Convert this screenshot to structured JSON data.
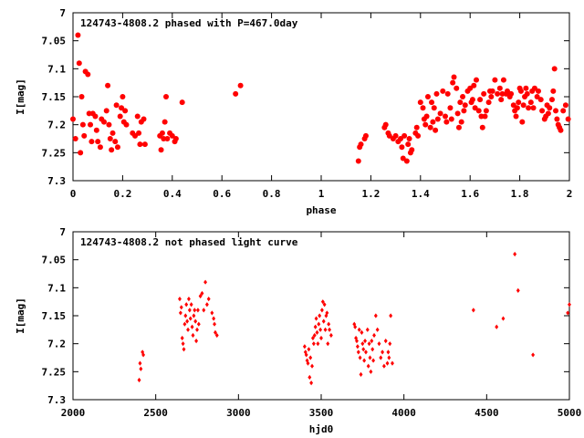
{
  "chart_data": [
    {
      "type": "scatter",
      "title": "124743-4808.2 phased with P=467.0day",
      "xlabel": "phase",
      "ylabel": "I[mag]",
      "xlim": [
        0,
        2
      ],
      "ylim": [
        7,
        7.3
      ],
      "y_inverted": true,
      "grid": false,
      "marker": "filled-circle",
      "color": "#ff0000",
      "xticks": [
        "0",
        "0.2",
        "0.4",
        "0.6",
        "0.8",
        "1",
        "1.2",
        "1.4",
        "1.6",
        "1.8",
        "2"
      ],
      "yticks": [
        "7",
        "7.05",
        "7.1",
        "7.15",
        "7.2",
        "7.25",
        "7.3"
      ],
      "points": [
        [
          0.0,
          7.19
        ],
        [
          0.01,
          7.225
        ],
        [
          0.02,
          7.04
        ],
        [
          0.025,
          7.09
        ],
        [
          0.03,
          7.25
        ],
        [
          0.035,
          7.15
        ],
        [
          0.04,
          7.2
        ],
        [
          0.045,
          7.22
        ],
        [
          0.05,
          7.105
        ],
        [
          0.06,
          7.11
        ],
        [
          0.065,
          7.18
        ],
        [
          0.07,
          7.2
        ],
        [
          0.075,
          7.23
        ],
        [
          0.08,
          7.18
        ],
        [
          0.09,
          7.185
        ],
        [
          0.095,
          7.21
        ],
        [
          0.1,
          7.23
        ],
        [
          0.11,
          7.24
        ],
        [
          0.115,
          7.19
        ],
        [
          0.125,
          7.195
        ],
        [
          0.135,
          7.175
        ],
        [
          0.14,
          7.13
        ],
        [
          0.145,
          7.2
        ],
        [
          0.15,
          7.225
        ],
        [
          0.155,
          7.245
        ],
        [
          0.16,
          7.215
        ],
        [
          0.17,
          7.23
        ],
        [
          0.175,
          7.165
        ],
        [
          0.18,
          7.24
        ],
        [
          0.19,
          7.185
        ],
        [
          0.195,
          7.17
        ],
        [
          0.2,
          7.15
        ],
        [
          0.205,
          7.195
        ],
        [
          0.21,
          7.175
        ],
        [
          0.215,
          7.2
        ],
        [
          0.24,
          7.215
        ],
        [
          0.25,
          7.22
        ],
        [
          0.26,
          7.185
        ],
        [
          0.265,
          7.215
        ],
        [
          0.27,
          7.235
        ],
        [
          0.275,
          7.195
        ],
        [
          0.285,
          7.19
        ],
        [
          0.29,
          7.235
        ],
        [
          0.35,
          7.22
        ],
        [
          0.355,
          7.245
        ],
        [
          0.36,
          7.215
        ],
        [
          0.365,
          7.225
        ],
        [
          0.37,
          7.195
        ],
        [
          0.375,
          7.15
        ],
        [
          0.38,
          7.225
        ],
        [
          0.39,
          7.215
        ],
        [
          0.4,
          7.22
        ],
        [
          0.41,
          7.23
        ],
        [
          0.415,
          7.225
        ],
        [
          0.44,
          7.16
        ],
        [
          0.655,
          7.145
        ],
        [
          0.675,
          7.13
        ],
        [
          1.15,
          7.265
        ],
        [
          1.155,
          7.24
        ],
        [
          1.16,
          7.235
        ],
        [
          1.175,
          7.225
        ],
        [
          1.18,
          7.22
        ],
        [
          1.255,
          7.205
        ],
        [
          1.26,
          7.2
        ],
        [
          1.27,
          7.215
        ],
        [
          1.275,
          7.22
        ],
        [
          1.29,
          7.225
        ],
        [
          1.3,
          7.22
        ],
        [
          1.31,
          7.23
        ],
        [
          1.32,
          7.225
        ],
        [
          1.325,
          7.24
        ],
        [
          1.33,
          7.26
        ],
        [
          1.335,
          7.22
        ],
        [
          1.345,
          7.265
        ],
        [
          1.35,
          7.235
        ],
        [
          1.355,
          7.225
        ],
        [
          1.36,
          7.25
        ],
        [
          1.365,
          7.245
        ],
        [
          1.38,
          7.215
        ],
        [
          1.385,
          7.205
        ],
        [
          1.39,
          7.22
        ],
        [
          1.4,
          7.16
        ],
        [
          1.41,
          7.17
        ],
        [
          1.415,
          7.19
        ],
        [
          1.42,
          7.2
        ],
        [
          1.425,
          7.185
        ],
        [
          1.43,
          7.15
        ],
        [
          1.44,
          7.205
        ],
        [
          1.445,
          7.16
        ],
        [
          1.45,
          7.195
        ],
        [
          1.455,
          7.17
        ],
        [
          1.46,
          7.21
        ],
        [
          1.465,
          7.145
        ],
        [
          1.47,
          7.19
        ],
        [
          1.48,
          7.18
        ],
        [
          1.49,
          7.14
        ],
        [
          1.5,
          7.185
        ],
        [
          1.505,
          7.195
        ],
        [
          1.51,
          7.145
        ],
        [
          1.52,
          7.17
        ],
        [
          1.525,
          7.19
        ],
        [
          1.53,
          7.125
        ],
        [
          1.535,
          7.115
        ],
        [
          1.545,
          7.135
        ],
        [
          1.55,
          7.18
        ],
        [
          1.555,
          7.205
        ],
        [
          1.56,
          7.16
        ],
        [
          1.565,
          7.195
        ],
        [
          1.57,
          7.15
        ],
        [
          1.575,
          7.175
        ],
        [
          1.58,
          7.165
        ],
        [
          1.59,
          7.14
        ],
        [
          1.6,
          7.135
        ],
        [
          1.605,
          7.16
        ],
        [
          1.61,
          7.155
        ],
        [
          1.615,
          7.13
        ],
        [
          1.62,
          7.17
        ],
        [
          1.625,
          7.12
        ],
        [
          1.635,
          7.175
        ],
        [
          1.64,
          7.155
        ],
        [
          1.645,
          7.185
        ],
        [
          1.65,
          7.205
        ],
        [
          1.655,
          7.145
        ],
        [
          1.66,
          7.185
        ],
        [
          1.665,
          7.175
        ],
        [
          1.675,
          7.16
        ],
        [
          1.68,
          7.14
        ],
        [
          1.685,
          7.15
        ],
        [
          1.69,
          7.14
        ],
        [
          1.7,
          7.12
        ],
        [
          1.71,
          7.145
        ],
        [
          1.72,
          7.135
        ],
        [
          1.725,
          7.155
        ],
        [
          1.73,
          7.145
        ],
        [
          1.735,
          7.12
        ],
        [
          1.745,
          7.145
        ],
        [
          1.75,
          7.14
        ],
        [
          1.76,
          7.15
        ],
        [
          1.765,
          7.145
        ],
        [
          1.775,
          7.165
        ],
        [
          1.78,
          7.175
        ],
        [
          1.785,
          7.185
        ],
        [
          1.79,
          7.17
        ],
        [
          1.795,
          7.16
        ],
        [
          1.8,
          7.135
        ],
        [
          1.805,
          7.14
        ],
        [
          1.81,
          7.195
        ],
        [
          1.815,
          7.165
        ],
        [
          1.82,
          7.15
        ],
        [
          1.825,
          7.135
        ],
        [
          1.83,
          7.145
        ],
        [
          1.835,
          7.17
        ],
        [
          1.845,
          7.16
        ],
        [
          1.85,
          7.14
        ],
        [
          1.855,
          7.17
        ],
        [
          1.86,
          7.135
        ],
        [
          1.87,
          7.15
        ],
        [
          1.875,
          7.14
        ],
        [
          1.885,
          7.155
        ],
        [
          1.89,
          7.175
        ],
        [
          1.9,
          7.19
        ],
        [
          1.905,
          7.185
        ],
        [
          1.91,
          7.165
        ],
        [
          1.915,
          7.18
        ],
        [
          1.92,
          7.17
        ],
        [
          1.93,
          7.155
        ],
        [
          1.935,
          7.14
        ],
        [
          1.94,
          7.1
        ],
        [
          1.945,
          7.175
        ],
        [
          1.95,
          7.19
        ],
        [
          1.955,
          7.2
        ],
        [
          1.96,
          7.205
        ],
        [
          1.965,
          7.21
        ],
        [
          1.975,
          7.175
        ],
        [
          1.985,
          7.165
        ],
        [
          1.995,
          7.19
        ]
      ]
    },
    {
      "type": "scatter",
      "title": "124743-4808.2 not phased light curve",
      "xlabel": "hjd0",
      "ylabel": "I[mag]",
      "xlim": [
        2000,
        5000
      ],
      "ylim": [
        7,
        7.3
      ],
      "y_inverted": true,
      "grid": false,
      "marker": "small-diamond",
      "color": "#ff0000",
      "xticks": [
        "2000",
        "2500",
        "3000",
        "3500",
        "4000",
        "4500",
        "5000"
      ],
      "yticks": [
        "7",
        "7.05",
        "7.1",
        "7.15",
        "7.2",
        "7.25",
        "7.3"
      ],
      "points": [
        [
          2400,
          7.265
        ],
        [
          2405,
          7.235
        ],
        [
          2410,
          7.245
        ],
        [
          2420,
          7.215
        ],
        [
          2425,
          7.22
        ],
        [
          2645,
          7.12
        ],
        [
          2650,
          7.145
        ],
        [
          2655,
          7.135
        ],
        [
          2660,
          7.19
        ],
        [
          2665,
          7.2
        ],
        [
          2670,
          7.21
        ],
        [
          2675,
          7.165
        ],
        [
          2680,
          7.15
        ],
        [
          2685,
          7.13
        ],
        [
          2690,
          7.16
        ],
        [
          2695,
          7.175
        ],
        [
          2700,
          7.12
        ],
        [
          2705,
          7.14
        ],
        [
          2710,
          7.155
        ],
        [
          2715,
          7.13
        ],
        [
          2720,
          7.17
        ],
        [
          2725,
          7.185
        ],
        [
          2730,
          7.15
        ],
        [
          2735,
          7.14
        ],
        [
          2740,
          7.16
        ],
        [
          2745,
          7.195
        ],
        [
          2750,
          7.175
        ],
        [
          2755,
          7.14
        ],
        [
          2760,
          7.165
        ],
        [
          2770,
          7.115
        ],
        [
          2780,
          7.11
        ],
        [
          2790,
          7.14
        ],
        [
          2800,
          7.09
        ],
        [
          2810,
          7.13
        ],
        [
          2820,
          7.12
        ],
        [
          2840,
          7.145
        ],
        [
          2850,
          7.155
        ],
        [
          2855,
          7.165
        ],
        [
          2860,
          7.18
        ],
        [
          2870,
          7.185
        ],
        [
          3400,
          7.205
        ],
        [
          3405,
          7.215
        ],
        [
          3410,
          7.22
        ],
        [
          3415,
          7.23
        ],
        [
          3420,
          7.235
        ],
        [
          3425,
          7.21
        ],
        [
          3430,
          7.26
        ],
        [
          3435,
          7.225
        ],
        [
          3440,
          7.27
        ],
        [
          3445,
          7.24
        ],
        [
          3450,
          7.19
        ],
        [
          3455,
          7.2
        ],
        [
          3460,
          7.185
        ],
        [
          3465,
          7.17
        ],
        [
          3470,
          7.155
        ],
        [
          3475,
          7.18
        ],
        [
          3480,
          7.2
        ],
        [
          3485,
          7.165
        ],
        [
          3490,
          7.15
        ],
        [
          3495,
          7.175
        ],
        [
          3500,
          7.19
        ],
        [
          3505,
          7.14
        ],
        [
          3510,
          7.125
        ],
        [
          3515,
          7.16
        ],
        [
          3520,
          7.13
        ],
        [
          3525,
          7.175
        ],
        [
          3530,
          7.15
        ],
        [
          3535,
          7.145
        ],
        [
          3540,
          7.2
        ],
        [
          3545,
          7.165
        ],
        [
          3550,
          7.175
        ],
        [
          3560,
          7.185
        ],
        [
          3700,
          7.165
        ],
        [
          3705,
          7.17
        ],
        [
          3710,
          7.19
        ],
        [
          3715,
          7.195
        ],
        [
          3720,
          7.205
        ],
        [
          3725,
          7.215
        ],
        [
          3730,
          7.175
        ],
        [
          3735,
          7.225
        ],
        [
          3740,
          7.255
        ],
        [
          3745,
          7.18
        ],
        [
          3750,
          7.2
        ],
        [
          3755,
          7.21
        ],
        [
          3760,
          7.23
        ],
        [
          3765,
          7.195
        ],
        [
          3770,
          7.215
        ],
        [
          3780,
          7.175
        ],
        [
          3785,
          7.24
        ],
        [
          3790,
          7.2
        ],
        [
          3795,
          7.225
        ],
        [
          3800,
          7.25
        ],
        [
          3805,
          7.195
        ],
        [
          3810,
          7.21
        ],
        [
          3815,
          7.23
        ],
        [
          3820,
          7.185
        ],
        [
          3830,
          7.15
        ],
        [
          3840,
          7.175
        ],
        [
          3850,
          7.2
        ],
        [
          3860,
          7.225
        ],
        [
          3870,
          7.215
        ],
        [
          3880,
          7.24
        ],
        [
          3890,
          7.195
        ],
        [
          3900,
          7.235
        ],
        [
          3905,
          7.215
        ],
        [
          3910,
          7.225
        ],
        [
          3915,
          7.2
        ],
        [
          3920,
          7.15
        ],
        [
          3930,
          7.235
        ],
        [
          4420,
          7.14
        ],
        [
          4560,
          7.17
        ],
        [
          4600,
          7.155
        ],
        [
          4670,
          7.04
        ],
        [
          4690,
          7.105
        ],
        [
          4780,
          7.22
        ],
        [
          4990,
          7.145
        ],
        [
          5000,
          7.13
        ]
      ]
    }
  ]
}
